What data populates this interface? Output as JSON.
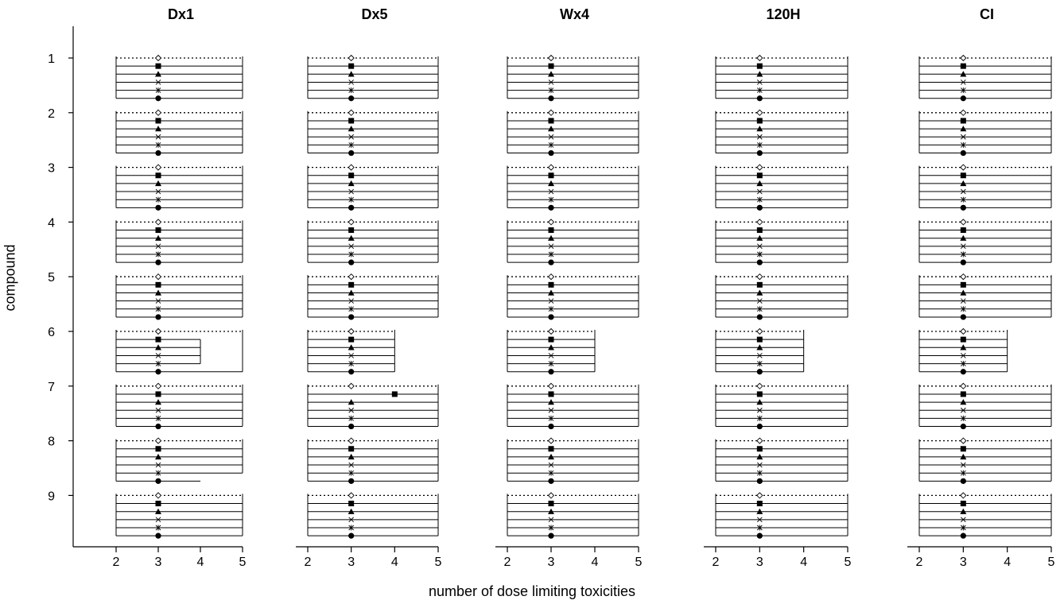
{
  "chart_data": {
    "type": "range-bar",
    "xlabel": "number of dose limiting toxicities",
    "ylabel": "compound",
    "compounds": [
      "1",
      "2",
      "3",
      "4",
      "5",
      "6",
      "7",
      "8",
      "9"
    ],
    "x_ticks": [
      "2",
      "3",
      "4",
      "5"
    ],
    "xlim": [
      2,
      5
    ],
    "markers": [
      "open-diamond",
      "filled-square",
      "filled-triangle",
      "x-cross",
      "asterisk",
      "filled-circle"
    ],
    "panels": [
      {
        "title": "Dx1",
        "rows": [
          {
            "compound": "1",
            "markers": [
              3,
              3,
              3,
              3,
              3,
              3
            ],
            "ends": [
              5,
              5,
              5,
              5,
              5,
              5
            ]
          },
          {
            "compound": "2",
            "markers": [
              3,
              3,
              3,
              3,
              3,
              3
            ],
            "ends": [
              5,
              5,
              5,
              5,
              5,
              5
            ]
          },
          {
            "compound": "3",
            "markers": [
              3,
              3,
              3,
              3,
              3,
              3
            ],
            "ends": [
              5,
              5,
              5,
              5,
              5,
              5
            ]
          },
          {
            "compound": "4",
            "markers": [
              3,
              3,
              3,
              3,
              3,
              3
            ],
            "ends": [
              5,
              5,
              5,
              5,
              5,
              5
            ]
          },
          {
            "compound": "5",
            "markers": [
              3,
              3,
              3,
              3,
              3,
              3
            ],
            "ends": [
              5,
              5,
              5,
              5,
              5,
              5
            ]
          },
          {
            "compound": "6",
            "markers": [
              3,
              3,
              3,
              3,
              3,
              3
            ],
            "ends": [
              5,
              4,
              4,
              4,
              4,
              5
            ]
          },
          {
            "compound": "7",
            "markers": [
              3,
              3,
              3,
              3,
              3,
              3
            ],
            "ends": [
              5,
              5,
              5,
              5,
              5,
              5
            ]
          },
          {
            "compound": "8",
            "markers": [
              3,
              3,
              3,
              3,
              3,
              3
            ],
            "ends": [
              5,
              5,
              5,
              5,
              5,
              4
            ]
          },
          {
            "compound": "9",
            "markers": [
              3,
              3,
              3,
              3,
              3,
              3
            ],
            "ends": [
              5,
              5,
              5,
              5,
              5,
              5
            ]
          }
        ]
      },
      {
        "title": "Dx5",
        "rows": [
          {
            "compound": "1",
            "markers": [
              3,
              3,
              3,
              3,
              3,
              3
            ],
            "ends": [
              5,
              5,
              5,
              5,
              5,
              5
            ]
          },
          {
            "compound": "2",
            "markers": [
              3,
              3,
              3,
              3,
              3,
              3
            ],
            "ends": [
              5,
              5,
              5,
              5,
              5,
              5
            ]
          },
          {
            "compound": "3",
            "markers": [
              3,
              3,
              3,
              3,
              3,
              3
            ],
            "ends": [
              5,
              5,
              5,
              5,
              5,
              5
            ]
          },
          {
            "compound": "4",
            "markers": [
              3,
              3,
              3,
              3,
              3,
              3
            ],
            "ends": [
              5,
              5,
              5,
              5,
              5,
              5
            ]
          },
          {
            "compound": "5",
            "markers": [
              3,
              3,
              3,
              3,
              3,
              3
            ],
            "ends": [
              5,
              5,
              5,
              5,
              5,
              5
            ]
          },
          {
            "compound": "6",
            "markers": [
              3,
              3,
              3,
              3,
              3,
              3
            ],
            "ends": [
              4,
              4,
              4,
              4,
              4,
              4
            ]
          },
          {
            "compound": "7",
            "markers": [
              3,
              4,
              3,
              3,
              3,
              3
            ],
            "ends": [
              5,
              5,
              5,
              5,
              5,
              5
            ]
          },
          {
            "compound": "8",
            "markers": [
              3,
              3,
              3,
              3,
              3,
              3
            ],
            "ends": [
              5,
              5,
              5,
              5,
              5,
              5
            ]
          },
          {
            "compound": "9",
            "markers": [
              3,
              3,
              3,
              3,
              3,
              3
            ],
            "ends": [
              5,
              5,
              5,
              5,
              5,
              5
            ]
          }
        ]
      },
      {
        "title": "Wx4",
        "rows": [
          {
            "compound": "1",
            "markers": [
              3,
              3,
              3,
              3,
              3,
              3
            ],
            "ends": [
              5,
              5,
              5,
              5,
              5,
              5
            ]
          },
          {
            "compound": "2",
            "markers": [
              3,
              3,
              3,
              3,
              3,
              3
            ],
            "ends": [
              5,
              5,
              5,
              5,
              5,
              5
            ]
          },
          {
            "compound": "3",
            "markers": [
              3,
              3,
              3,
              3,
              3,
              3
            ],
            "ends": [
              5,
              5,
              5,
              5,
              5,
              5
            ]
          },
          {
            "compound": "4",
            "markers": [
              3,
              3,
              3,
              3,
              3,
              3
            ],
            "ends": [
              5,
              5,
              5,
              5,
              5,
              5
            ]
          },
          {
            "compound": "5",
            "markers": [
              3,
              3,
              3,
              3,
              3,
              3
            ],
            "ends": [
              5,
              5,
              5,
              5,
              5,
              5
            ]
          },
          {
            "compound": "6",
            "markers": [
              3,
              3,
              3,
              3,
              3,
              3
            ],
            "ends": [
              4,
              4,
              4,
              4,
              4,
              4
            ]
          },
          {
            "compound": "7",
            "markers": [
              3,
              3,
              3,
              3,
              3,
              3
            ],
            "ends": [
              5,
              5,
              5,
              5,
              5,
              5
            ]
          },
          {
            "compound": "8",
            "markers": [
              3,
              3,
              3,
              3,
              3,
              3
            ],
            "ends": [
              5,
              5,
              5,
              5,
              5,
              5
            ]
          },
          {
            "compound": "9",
            "markers": [
              3,
              3,
              3,
              3,
              3,
              3
            ],
            "ends": [
              5,
              5,
              5,
              5,
              5,
              5
            ]
          }
        ]
      },
      {
        "title": "120H",
        "rows": [
          {
            "compound": "1",
            "markers": [
              3,
              3,
              3,
              3,
              3,
              3
            ],
            "ends": [
              5,
              5,
              5,
              5,
              5,
              5
            ]
          },
          {
            "compound": "2",
            "markers": [
              3,
              3,
              3,
              3,
              3,
              3
            ],
            "ends": [
              5,
              5,
              5,
              5,
              5,
              5
            ]
          },
          {
            "compound": "3",
            "markers": [
              3,
              3,
              3,
              3,
              3,
              3
            ],
            "ends": [
              5,
              5,
              5,
              5,
              5,
              5
            ]
          },
          {
            "compound": "4",
            "markers": [
              3,
              3,
              3,
              3,
              3,
              3
            ],
            "ends": [
              5,
              5,
              5,
              5,
              5,
              5
            ]
          },
          {
            "compound": "5",
            "markers": [
              3,
              3,
              3,
              3,
              3,
              3
            ],
            "ends": [
              5,
              5,
              5,
              5,
              5,
              5
            ]
          },
          {
            "compound": "6",
            "markers": [
              3,
              3,
              3,
              3,
              3,
              3
            ],
            "ends": [
              4,
              4,
              4,
              4,
              4,
              4
            ]
          },
          {
            "compound": "7",
            "markers": [
              3,
              3,
              3,
              3,
              3,
              3
            ],
            "ends": [
              5,
              5,
              5,
              5,
              5,
              5
            ]
          },
          {
            "compound": "8",
            "markers": [
              3,
              3,
              3,
              3,
              3,
              3
            ],
            "ends": [
              5,
              5,
              5,
              5,
              5,
              5
            ]
          },
          {
            "compound": "9",
            "markers": [
              3,
              3,
              3,
              3,
              3,
              3
            ],
            "ends": [
              5,
              5,
              5,
              5,
              5,
              5
            ]
          }
        ]
      },
      {
        "title": "CI",
        "rows": [
          {
            "compound": "1",
            "markers": [
              3,
              3,
              3,
              3,
              3,
              3
            ],
            "ends": [
              5,
              5,
              5,
              5,
              5,
              5
            ]
          },
          {
            "compound": "2",
            "markers": [
              3,
              3,
              3,
              3,
              3,
              3
            ],
            "ends": [
              5,
              5,
              5,
              5,
              5,
              5
            ]
          },
          {
            "compound": "3",
            "markers": [
              3,
              3,
              3,
              3,
              3,
              3
            ],
            "ends": [
              5,
              5,
              5,
              5,
              5,
              5
            ]
          },
          {
            "compound": "4",
            "markers": [
              3,
              3,
              3,
              3,
              3,
              3
            ],
            "ends": [
              5,
              5,
              5,
              5,
              5,
              5
            ]
          },
          {
            "compound": "5",
            "markers": [
              3,
              3,
              3,
              3,
              3,
              3
            ],
            "ends": [
              5,
              5,
              5,
              5,
              5,
              5
            ]
          },
          {
            "compound": "6",
            "markers": [
              3,
              3,
              3,
              3,
              3,
              3
            ],
            "ends": [
              4,
              4,
              4,
              4,
              4,
              4
            ]
          },
          {
            "compound": "7",
            "markers": [
              3,
              3,
              3,
              3,
              3,
              3
            ],
            "ends": [
              5,
              5,
              5,
              5,
              5,
              5
            ]
          },
          {
            "compound": "8",
            "markers": [
              3,
              3,
              3,
              3,
              3,
              3
            ],
            "ends": [
              5,
              5,
              5,
              5,
              5,
              5
            ]
          },
          {
            "compound": "9",
            "markers": [
              3,
              3,
              3,
              3,
              3,
              3
            ],
            "ends": [
              5,
              5,
              5,
              5,
              5,
              5
            ]
          }
        ]
      }
    ]
  }
}
